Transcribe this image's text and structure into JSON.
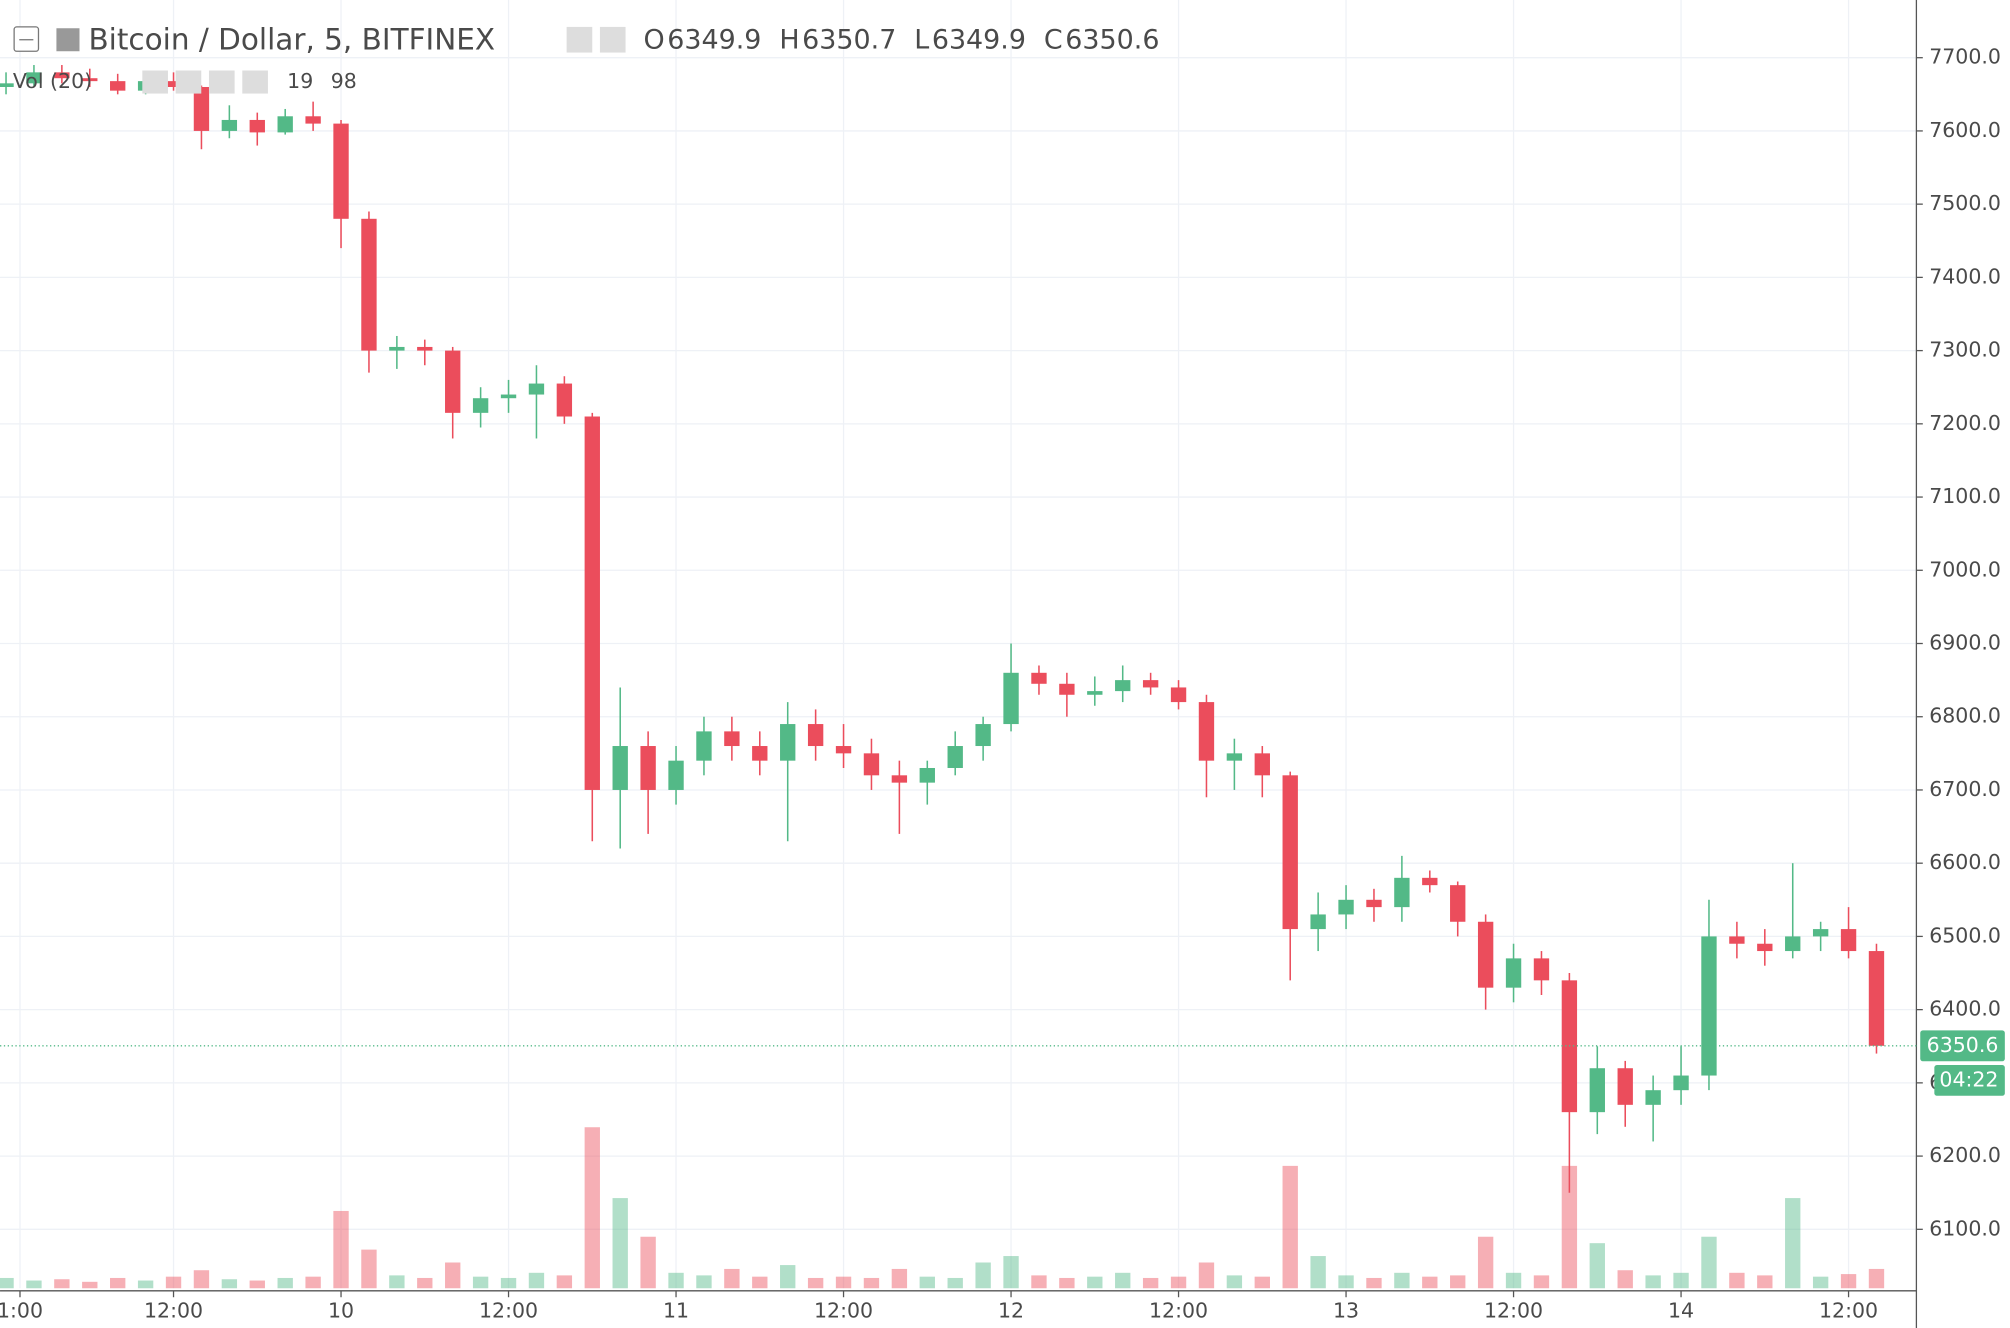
{
  "chart_data": {
    "type": "candlestick",
    "title": "Bitcoin / Dollar, 5, BITFINEX",
    "ohlc_legend": [
      {
        "key": "O",
        "value": "6349.9"
      },
      {
        "key": "H",
        "value": "6350.7"
      },
      {
        "key": "L",
        "value": "6349.9"
      },
      {
        "key": "C",
        "value": "6350.6"
      }
    ],
    "volume_legend": {
      "name": "Vol (20)",
      "values": [
        "19",
        "98"
      ]
    },
    "last_price": {
      "value": 6350.6,
      "label": "6350.6",
      "countdown": "04:22"
    },
    "up_color": "#53b987",
    "down_color": "#eb4d5c",
    "x": [
      0,
      2,
      4,
      6,
      8,
      10,
      12,
      14,
      16,
      18,
      20,
      22,
      24,
      26,
      28,
      30,
      32,
      34,
      36,
      38,
      40,
      42,
      44,
      46,
      48,
      50,
      52,
      54,
      56,
      58,
      60,
      62,
      64,
      66,
      68,
      70,
      72,
      74,
      76,
      78,
      80,
      82,
      84,
      86,
      88,
      90,
      92,
      94,
      96,
      98,
      100,
      102,
      104,
      106,
      108,
      110,
      112,
      114,
      116,
      118,
      120,
      122,
      124,
      126,
      128,
      130,
      132,
      134
    ],
    "open": [
      7660,
      7665,
      7680,
      7672,
      7668,
      7655,
      7668,
      7660,
      7600,
      7615,
      7598,
      7620,
      7610,
      7480,
      7300,
      7305,
      7300,
      7215,
      7235,
      7240,
      7255,
      7210,
      6700,
      6760,
      6700,
      6740,
      6780,
      6760,
      6740,
      6790,
      6760,
      6750,
      6720,
      6710,
      6730,
      6760,
      6790,
      6860,
      6845,
      6830,
      6835,
      6850,
      6840,
      6820,
      6740,
      6750,
      6720,
      6510,
      6530,
      6550,
      6540,
      6580,
      6570,
      6520,
      6430,
      6470,
      6440,
      6260,
      6320,
      6270,
      6290,
      6310,
      6500,
      6490,
      6480,
      6500,
      6510,
      6480
    ],
    "high": [
      7680,
      7690,
      7690,
      7685,
      7678,
      7675,
      7680,
      7662,
      7635,
      7625,
      7630,
      7640,
      7615,
      7490,
      7320,
      7315,
      7305,
      7250,
      7260,
      7280,
      7265,
      7215,
      6840,
      6780,
      6760,
      6800,
      6800,
      6780,
      6820,
      6810,
      6790,
      6770,
      6740,
      6740,
      6780,
      6800,
      6900,
      6870,
      6860,
      6855,
      6870,
      6860,
      6850,
      6830,
      6770,
      6760,
      6725,
      6560,
      6570,
      6565,
      6610,
      6590,
      6575,
      6530,
      6490,
      6480,
      6450,
      6350,
      6330,
      6310,
      6350,
      6550,
      6520,
      6510,
      6600,
      6520,
      6540,
      6490
    ],
    "low": [
      7650,
      7660,
      7665,
      7660,
      7650,
      7650,
      7655,
      7575,
      7590,
      7580,
      7595,
      7600,
      7440,
      7270,
      7275,
      7280,
      7180,
      7195,
      7215,
      7180,
      7200,
      6630,
      6620,
      6640,
      6680,
      6720,
      6740,
      6720,
      6630,
      6740,
      6730,
      6700,
      6640,
      6680,
      6720,
      6740,
      6780,
      6830,
      6800,
      6815,
      6820,
      6830,
      6810,
      6690,
      6700,
      6690,
      6440,
      6480,
      6510,
      6520,
      6520,
      6560,
      6500,
      6400,
      6410,
      6420,
      6150,
      6230,
      6240,
      6220,
      6270,
      6290,
      6470,
      6460,
      6470,
      6480,
      6470,
      6340
    ],
    "close": [
      7665,
      7680,
      7672,
      7668,
      7655,
      7668,
      7660,
      7600,
      7615,
      7598,
      7620,
      7610,
      7480,
      7300,
      7305,
      7300,
      7215,
      7235,
      7240,
      7255,
      7210,
      6700,
      6760,
      6700,
      6740,
      6780,
      6760,
      6740,
      6790,
      6760,
      6750,
      6720,
      6710,
      6730,
      6760,
      6790,
      6860,
      6845,
      6830,
      6835,
      6850,
      6840,
      6820,
      6740,
      6750,
      6720,
      6510,
      6530,
      6550,
      6540,
      6580,
      6570,
      6520,
      6430,
      6470,
      6440,
      6260,
      6320,
      6270,
      6290,
      6310,
      6500,
      6490,
      6480,
      6500,
      6510,
      6480,
      6350.6
    ],
    "volume": [
      8,
      6,
      7,
      5,
      8,
      6,
      9,
      14,
      7,
      6,
      8,
      9,
      60,
      30,
      10,
      8,
      20,
      9,
      8,
      12,
      10,
      125,
      70,
      40,
      12,
      10,
      15,
      9,
      18,
      8,
      9,
      8,
      15,
      9,
      8,
      20,
      25,
      10,
      8,
      9,
      12,
      8,
      9,
      20,
      10,
      9,
      95,
      25,
      10,
      8,
      12,
      9,
      10,
      40,
      12,
      10,
      95,
      35,
      14,
      10,
      12,
      40,
      12,
      10,
      70,
      9,
      11,
      15
    ],
    "xlim": [
      -0.43,
      136.86
    ],
    "xticks": [
      {
        "value": 1,
        "label": "1:00"
      },
      {
        "value": 12,
        "label": "12:00"
      },
      {
        "value": 24,
        "label": "10"
      },
      {
        "value": 36,
        "label": "12:00"
      },
      {
        "value": 48,
        "label": "11"
      },
      {
        "value": 60,
        "label": "12:00"
      },
      {
        "value": 72,
        "label": "12"
      },
      {
        "value": 84,
        "label": "12:00"
      },
      {
        "value": 96,
        "label": "13"
      },
      {
        "value": 108,
        "label": "12:00"
      },
      {
        "value": 120,
        "label": "14"
      },
      {
        "value": 132,
        "label": "12:00"
      }
    ],
    "ylim": [
      6019.5,
      7778.8
    ],
    "yticks": [
      {
        "value": 6100,
        "label": "6100.0"
      },
      {
        "value": 6200,
        "label": "6200.0"
      },
      {
        "value": 6300,
        "label": "6300.0"
      },
      {
        "value": 6400,
        "label": "6400.0"
      },
      {
        "value": 6500,
        "label": "6500.0"
      },
      {
        "value": 6600,
        "label": "6600.0"
      },
      {
        "value": 6700,
        "label": "6700.0"
      },
      {
        "value": 6800,
        "label": "6800.0"
      },
      {
        "value": 6900,
        "label": "6900.0"
      },
      {
        "value": 7000,
        "label": "7000.0"
      },
      {
        "value": 7100,
        "label": "7100.0"
      },
      {
        "value": 7200,
        "label": "7200.0"
      },
      {
        "value": 7300,
        "label": "7300.0"
      },
      {
        "value": 7400,
        "label": "7400.0"
      },
      {
        "value": 7500,
        "label": "7500.0"
      },
      {
        "value": 7600,
        "label": "7600.0"
      },
      {
        "value": 7700,
        "label": "7700.0"
      }
    ],
    "y2lim": [
      0,
      1000
    ],
    "grid": true
  }
}
